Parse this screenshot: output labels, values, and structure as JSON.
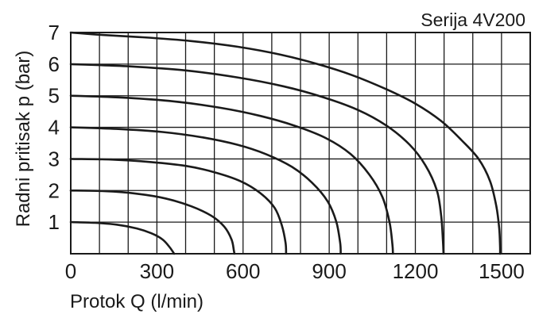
{
  "chart_data": {
    "type": "line",
    "title": "Serija 4V200",
    "xlabel": "Protok Q (l/min)",
    "ylabel": "Radni pritisak p (bar)",
    "xlim": [
      0,
      1600
    ],
    "ylim": [
      0,
      7
    ],
    "x_ticks": [
      0,
      300,
      600,
      900,
      1200,
      1500
    ],
    "x_tick_labels": [
      "0",
      "300",
      "600",
      "900",
      "1200",
      "1500"
    ],
    "y_ticks": [
      1,
      2,
      3,
      4,
      5,
      6,
      7
    ],
    "y_tick_labels": [
      "1",
      "2",
      "3",
      "4",
      "5",
      "6",
      "7"
    ],
    "x_grid_step": 100,
    "y_grid_step": 1,
    "grid": true,
    "legend": "none",
    "series": [
      {
        "points": [
          [
            0,
            1.0
          ],
          [
            80,
            0.98
          ],
          [
            160,
            0.92
          ],
          [
            230,
            0.8
          ],
          [
            280,
            0.65
          ],
          [
            320,
            0.45
          ],
          [
            345,
            0.2
          ],
          [
            360,
            0
          ]
        ]
      },
      {
        "points": [
          [
            0,
            2.0
          ],
          [
            120,
            1.98
          ],
          [
            230,
            1.9
          ],
          [
            330,
            1.75
          ],
          [
            420,
            1.5
          ],
          [
            490,
            1.2
          ],
          [
            535,
            0.85
          ],
          [
            560,
            0.45
          ],
          [
            568,
            0.1
          ],
          [
            570,
            0
          ]
        ]
      },
      {
        "points": [
          [
            0,
            3.0
          ],
          [
            140,
            2.98
          ],
          [
            280,
            2.9
          ],
          [
            400,
            2.78
          ],
          [
            500,
            2.58
          ],
          [
            590,
            2.3
          ],
          [
            660,
            1.92
          ],
          [
            710,
            1.45
          ],
          [
            735,
            0.9
          ],
          [
            748,
            0.35
          ],
          [
            750,
            0
          ]
        ]
      },
      {
        "points": [
          [
            0,
            4.0
          ],
          [
            160,
            3.95
          ],
          [
            320,
            3.85
          ],
          [
            460,
            3.68
          ],
          [
            580,
            3.45
          ],
          [
            680,
            3.15
          ],
          [
            770,
            2.75
          ],
          [
            840,
            2.25
          ],
          [
            895,
            1.65
          ],
          [
            925,
            1.0
          ],
          [
            938,
            0.35
          ],
          [
            940,
            0
          ]
        ]
      },
      {
        "points": [
          [
            0,
            5.0
          ],
          [
            180,
            4.94
          ],
          [
            360,
            4.82
          ],
          [
            520,
            4.62
          ],
          [
            660,
            4.36
          ],
          [
            780,
            4.05
          ],
          [
            890,
            3.65
          ],
          [
            975,
            3.15
          ],
          [
            1040,
            2.5
          ],
          [
            1085,
            1.8
          ],
          [
            1110,
            1.0
          ],
          [
            1120,
            0.3
          ],
          [
            1122,
            0
          ]
        ]
      },
      {
        "points": [
          [
            0,
            6.0
          ],
          [
            200,
            5.93
          ],
          [
            400,
            5.8
          ],
          [
            580,
            5.58
          ],
          [
            740,
            5.3
          ],
          [
            880,
            4.95
          ],
          [
            1000,
            4.55
          ],
          [
            1100,
            4.05
          ],
          [
            1180,
            3.45
          ],
          [
            1235,
            2.8
          ],
          [
            1275,
            2.0
          ],
          [
            1290,
            1.2
          ],
          [
            1296,
            0.4
          ],
          [
            1298,
            0
          ]
        ]
      },
      {
        "points": [
          [
            0,
            7.0
          ],
          [
            100,
            6.93
          ],
          [
            250,
            6.85
          ],
          [
            420,
            6.73
          ],
          [
            580,
            6.55
          ],
          [
            730,
            6.3
          ],
          [
            860,
            6.0
          ],
          [
            980,
            5.65
          ],
          [
            1100,
            5.2
          ],
          [
            1200,
            4.75
          ],
          [
            1290,
            4.2
          ],
          [
            1360,
            3.6
          ],
          [
            1420,
            3.0
          ],
          [
            1460,
            2.3
          ],
          [
            1482,
            1.5
          ],
          [
            1492,
            0.8
          ],
          [
            1495,
            0.2
          ],
          [
            1495,
            0
          ]
        ]
      }
    ]
  }
}
